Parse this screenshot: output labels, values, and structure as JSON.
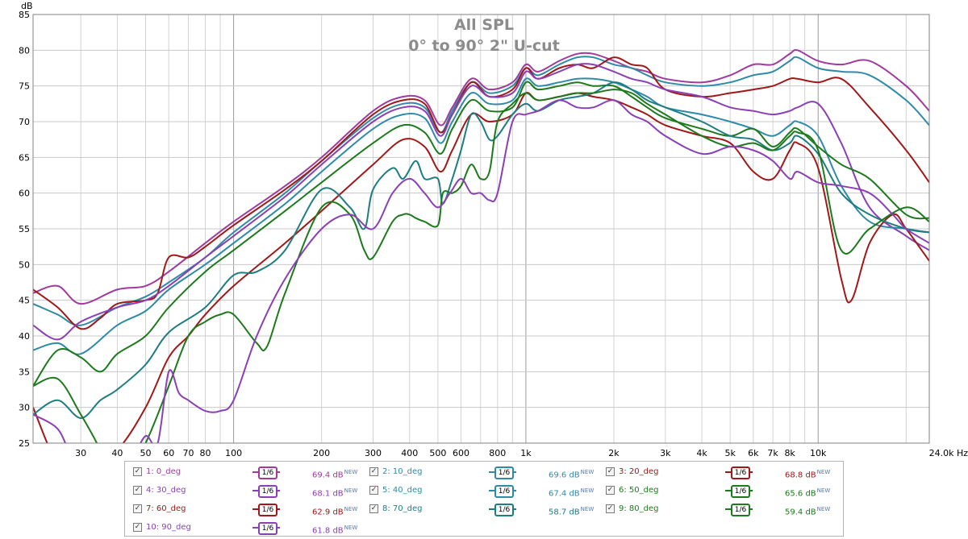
{
  "chart_data": {
    "type": "line",
    "title": "All SPL",
    "subtitle": "0° to 90° 2\" U-cut",
    "xlabel": "Hz",
    "ylabel": "dB",
    "x_scale": "log",
    "xlim": [
      20.6,
      24000
    ],
    "ylim": [
      25,
      85
    ],
    "grid": true,
    "x_tick_labels": [
      {
        "value": 30,
        "label": "30"
      },
      {
        "value": 40,
        "label": "40"
      },
      {
        "value": 50,
        "label": "50"
      },
      {
        "value": 60,
        "label": "60"
      },
      {
        "value": 70,
        "label": "70"
      },
      {
        "value": 80,
        "label": "80"
      },
      {
        "value": 100,
        "label": "100"
      },
      {
        "value": 200,
        "label": "200"
      },
      {
        "value": 300,
        "label": "300"
      },
      {
        "value": 400,
        "label": "400"
      },
      {
        "value": 500,
        "label": "500"
      },
      {
        "value": 600,
        "label": "600"
      },
      {
        "value": 800,
        "label": "800"
      },
      {
        "value": 1000,
        "label": "1k"
      },
      {
        "value": 2000,
        "label": "2k"
      },
      {
        "value": 3000,
        "label": "3k"
      },
      {
        "value": 4000,
        "label": "4k"
      },
      {
        "value": 5000,
        "label": "5k"
      },
      {
        "value": 6000,
        "label": "6k"
      },
      {
        "value": 7000,
        "label": "7k"
      },
      {
        "value": 8000,
        "label": "8k"
      },
      {
        "value": 10000,
        "label": "10k"
      },
      {
        "value": 24000,
        "label": "24.0k Hz"
      }
    ],
    "y_ticks": [
      25,
      30,
      35,
      40,
      45,
      50,
      55,
      60,
      65,
      70,
      75,
      80,
      85
    ],
    "series": [
      {
        "name": "1: 0_deg",
        "color": "#a03a9c",
        "x": [
          20.6,
          25,
          30,
          40,
          50,
          60,
          80,
          100,
          150,
          200,
          300,
          380,
          450,
          510,
          560,
          650,
          750,
          900,
          1000,
          1100,
          1300,
          1500,
          1700,
          2000,
          2300,
          2600,
          3000,
          4000,
          5000,
          6000,
          7000,
          8000,
          8500,
          10000,
          12000,
          15000,
          20000,
          24000
        ],
        "y": [
          46,
          47,
          44.5,
          46.5,
          47,
          49,
          53,
          56,
          61,
          65,
          71.5,
          73.5,
          73,
          69.5,
          72,
          76,
          74.5,
          75.5,
          78,
          77,
          78.5,
          79.5,
          79.5,
          78.5,
          77.5,
          77,
          76,
          75.5,
          76.5,
          78,
          78,
          79.5,
          80,
          78.5,
          78,
          78.5,
          75,
          71.5
        ]
      },
      {
        "name": "2: 10_deg",
        "color": "#2f8aa8",
        "x": [
          20.6,
          25,
          30,
          40,
          50,
          60,
          80,
          100,
          150,
          200,
          300,
          380,
          450,
          510,
          560,
          650,
          750,
          900,
          1000,
          1100,
          1300,
          1500,
          1700,
          2000,
          2300,
          2600,
          3000,
          4000,
          5000,
          6000,
          7000,
          8000,
          8500,
          10000,
          12000,
          15000,
          20000,
          24000
        ],
        "y": [
          44.5,
          43,
          41.5,
          44,
          45.5,
          47.5,
          51,
          54.5,
          60,
          64.5,
          70.5,
          72.5,
          72,
          68.5,
          71.5,
          75.5,
          74,
          75,
          77.5,
          76.5,
          78,
          79,
          79,
          78,
          77.5,
          76.5,
          75.5,
          75,
          75.5,
          76.5,
          77,
          78.5,
          79,
          77.5,
          77,
          76.5,
          73,
          69.5
        ]
      },
      {
        "name": "3: 20_deg",
        "color": "#a01818",
        "x": [
          20.6,
          25,
          30,
          35,
          40,
          50,
          55,
          60,
          70,
          80,
          100,
          150,
          200,
          300,
          380,
          450,
          510,
          560,
          650,
          750,
          900,
          1000,
          1100,
          1300,
          1500,
          1700,
          2000,
          2300,
          2600,
          3000,
          4000,
          5000,
          6000,
          7000,
          8000,
          8500,
          10000,
          12000,
          15000,
          20000,
          24000
        ],
        "y": [
          46.5,
          44,
          41,
          42.5,
          44.5,
          45,
          46,
          51,
          51,
          52.5,
          55.5,
          60.5,
          64.5,
          71,
          73,
          72.5,
          68.5,
          71,
          75.5,
          73.5,
          74.5,
          77.5,
          76,
          77.5,
          78,
          77.5,
          79,
          78,
          77.5,
          74.5,
          73.5,
          74,
          74.5,
          75,
          76,
          76,
          75.5,
          76,
          72,
          66,
          61.5
        ]
      },
      {
        "name": "4: 30_deg",
        "color": "#8b3fb5",
        "x": [
          20.6,
          25,
          30,
          40,
          50,
          60,
          80,
          100,
          150,
          200,
          300,
          380,
          450,
          510,
          560,
          650,
          750,
          900,
          1000,
          1100,
          1300,
          1500,
          1700,
          2000,
          2300,
          2600,
          3000,
          4000,
          5000,
          6000,
          7000,
          8000,
          8500,
          10000,
          12000,
          15000,
          20000,
          24000
        ],
        "y": [
          41.5,
          39.5,
          42,
          44,
          45,
          47,
          51,
          54,
          59.5,
          64,
          70,
          72,
          71.5,
          68,
          71,
          75,
          73.5,
          74,
          77,
          76,
          77,
          78,
          78,
          77,
          76,
          75.5,
          74.5,
          73.5,
          72,
          71.5,
          71,
          71.5,
          72,
          72.5,
          67,
          58,
          54,
          52
        ]
      },
      {
        "name": "5: 40_deg",
        "color": "#2f8aa8",
        "x": [
          20.6,
          25,
          30,
          40,
          50,
          60,
          80,
          100,
          150,
          200,
          300,
          380,
          450,
          510,
          560,
          650,
          750,
          900,
          1000,
          1100,
          1300,
          1500,
          1700,
          2000,
          2300,
          2600,
          3000,
          4000,
          5000,
          6000,
          7000,
          8000,
          8500,
          10000,
          12000,
          15000,
          20000,
          24000
        ],
        "y": [
          38,
          39,
          37.5,
          41.5,
          43.5,
          46.5,
          50,
          53,
          58.5,
          63,
          69,
          71,
          70.5,
          67,
          70,
          74,
          72.5,
          73,
          76,
          75,
          75.5,
          76,
          76,
          75.5,
          74.5,
          73.5,
          72,
          71,
          70,
          69,
          68,
          69.5,
          70,
          68,
          61,
          56,
          55,
          54.5
        ]
      },
      {
        "name": "6: 50_deg",
        "color": "#1c7a1c",
        "x": [
          20.6,
          25,
          30,
          35,
          40,
          50,
          60,
          80,
          100,
          150,
          200,
          300,
          380,
          450,
          510,
          560,
          650,
          750,
          900,
          1000,
          1100,
          1300,
          1500,
          1700,
          2000,
          2300,
          2600,
          3000,
          4000,
          5000,
          6000,
          7000,
          8000,
          8500,
          10000,
          12000,
          15000,
          20000,
          24000
        ],
        "y": [
          33,
          38,
          37,
          35,
          37.5,
          40,
          44,
          49,
          52,
          57.5,
          61.5,
          67,
          69.5,
          68.5,
          65.5,
          69,
          73,
          71.5,
          72,
          75.5,
          74.5,
          75,
          75.5,
          75,
          75,
          73.5,
          72,
          70.5,
          69,
          68,
          69,
          66.5,
          68.5,
          69,
          66.5,
          64,
          62,
          57,
          56.5
        ]
      },
      {
        "name": "7: 60_deg",
        "color": "#a01818",
        "x": [
          20.6,
          25,
          30,
          40,
          50,
          60,
          70,
          80,
          100,
          150,
          200,
          300,
          380,
          450,
          510,
          560,
          650,
          750,
          900,
          1000,
          1100,
          1300,
          1500,
          1700,
          2000,
          2300,
          2600,
          3000,
          4000,
          5000,
          6000,
          7000,
          8000,
          8500,
          10000,
          12000,
          13000,
          15000,
          18000,
          20000,
          24000
        ],
        "y": [
          30,
          22,
          20,
          24,
          30,
          37,
          40,
          43,
          47,
          53,
          57.5,
          64,
          67.5,
          66.5,
          63,
          66,
          71,
          70,
          71,
          74,
          73,
          73.5,
          74,
          73.5,
          73,
          72,
          71,
          69.5,
          68,
          67,
          63,
          62,
          66,
          67,
          63.5,
          48,
          45,
          53,
          57,
          55,
          50.5
        ]
      },
      {
        "name": "8: 70_deg",
        "color": "#1e7d80",
        "x": [
          20.6,
          25,
          30,
          35,
          40,
          50,
          60,
          80,
          100,
          120,
          150,
          200,
          250,
          280,
          300,
          350,
          380,
          420,
          450,
          500,
          520,
          560,
          600,
          650,
          700,
          750,
          800,
          900,
          1000,
          1100,
          1300,
          1500,
          1700,
          2000,
          2300,
          2600,
          3000,
          4000,
          5000,
          6000,
          7000,
          8000,
          8500,
          10000,
          12000,
          15000,
          20000,
          24000
        ],
        "y": [
          29,
          31,
          28.5,
          31,
          32.5,
          36,
          40.5,
          44,
          48.5,
          49,
          52,
          60.5,
          58,
          55,
          60.5,
          63.5,
          62,
          64.5,
          62,
          62,
          58.5,
          62,
          66,
          71,
          70,
          67.5,
          68,
          71,
          72.5,
          71.5,
          73,
          73.5,
          74,
          75.5,
          74.5,
          73,
          72,
          70,
          68,
          67.5,
          66,
          67,
          68,
          65.5,
          60,
          57,
          55,
          54.5
        ]
      },
      {
        "name": "9: 80_deg",
        "color": "#1c7a1c",
        "x": [
          20.6,
          25,
          30,
          35,
          40,
          50,
          60,
          70,
          80,
          90,
          100,
          120,
          130,
          150,
          200,
          250,
          280,
          300,
          350,
          380,
          400,
          420,
          450,
          500,
          520,
          560,
          600,
          650,
          700,
          750,
          800,
          900,
          1000,
          1100,
          1300,
          1500,
          1700,
          2000,
          2300,
          2600,
          3000,
          4000,
          5000,
          6000,
          7000,
          8000,
          8500,
          10000,
          12000,
          15000,
          20000,
          24000
        ],
        "y": [
          33,
          34,
          29,
          24,
          18,
          25,
          33,
          40,
          42,
          43,
          43,
          39,
          38.5,
          46,
          58,
          57,
          52,
          51,
          56,
          57,
          57,
          56.5,
          56,
          55.5,
          60,
          60,
          61,
          64,
          62,
          63,
          70,
          72.5,
          74,
          73,
          73.5,
          74,
          74,
          74.5,
          74,
          72.5,
          71,
          68,
          66.5,
          67,
          66,
          68,
          68.5,
          66,
          52,
          55,
          58,
          56
        ]
      },
      {
        "name": "10: 90_deg",
        "color": "#8b3fb5",
        "x": [
          20.6,
          25,
          28,
          30,
          35,
          40,
          45,
          50,
          55,
          60,
          65,
          70,
          80,
          90,
          100,
          120,
          150,
          200,
          250,
          300,
          350,
          400,
          450,
          500,
          550,
          600,
          650,
          700,
          750,
          800,
          900,
          1000,
          1100,
          1300,
          1500,
          1700,
          2000,
          2300,
          2600,
          3000,
          4000,
          5000,
          6000,
          7000,
          8000,
          8500,
          10000,
          12000,
          15000,
          18000,
          20000,
          24000
        ],
        "y": [
          29,
          27,
          23,
          24,
          22,
          22,
          23,
          26,
          25,
          35,
          32,
          31,
          29.5,
          29.5,
          31,
          40,
          48,
          55,
          57,
          55,
          60,
          62,
          60,
          58,
          60,
          62,
          60,
          60,
          59,
          60,
          70,
          71,
          71.5,
          73,
          72,
          72,
          73,
          71,
          70,
          68,
          65.5,
          66.5,
          66,
          64.5,
          62,
          63,
          61.5,
          61,
          60,
          57,
          55,
          53
        ]
      }
    ]
  },
  "legend": {
    "entries": [
      {
        "label": "1: 0_deg",
        "smooth": "1/6",
        "value": "69.4 dB",
        "badge": "NEW"
      },
      {
        "label": "2: 10_deg",
        "smooth": "1/6",
        "value": "69.6 dB",
        "badge": "NEW"
      },
      {
        "label": "3: 20_deg",
        "smooth": "1/6",
        "value": "68.8 dB",
        "badge": "NEW"
      },
      {
        "label": "4: 30_deg",
        "smooth": "1/6",
        "value": "68.1 dB",
        "badge": "NEW"
      },
      {
        "label": "5: 40_deg",
        "smooth": "1/6",
        "value": "67.4 dB",
        "badge": "NEW"
      },
      {
        "label": "6: 50_deg",
        "smooth": "1/6",
        "value": "65.6 dB",
        "badge": "NEW"
      },
      {
        "label": "7: 60_deg",
        "smooth": "1/6",
        "value": "62.9 dB",
        "badge": "NEW"
      },
      {
        "label": "8: 70_deg",
        "smooth": "1/6",
        "value": "58.7 dB",
        "badge": "NEW"
      },
      {
        "label": "9: 80_deg",
        "smooth": "1/6",
        "value": "59.4 dB",
        "badge": "NEW"
      },
      {
        "label": "10: 90_deg",
        "smooth": "1/6",
        "value": "61.8 dB",
        "badge": "NEW"
      }
    ]
  }
}
